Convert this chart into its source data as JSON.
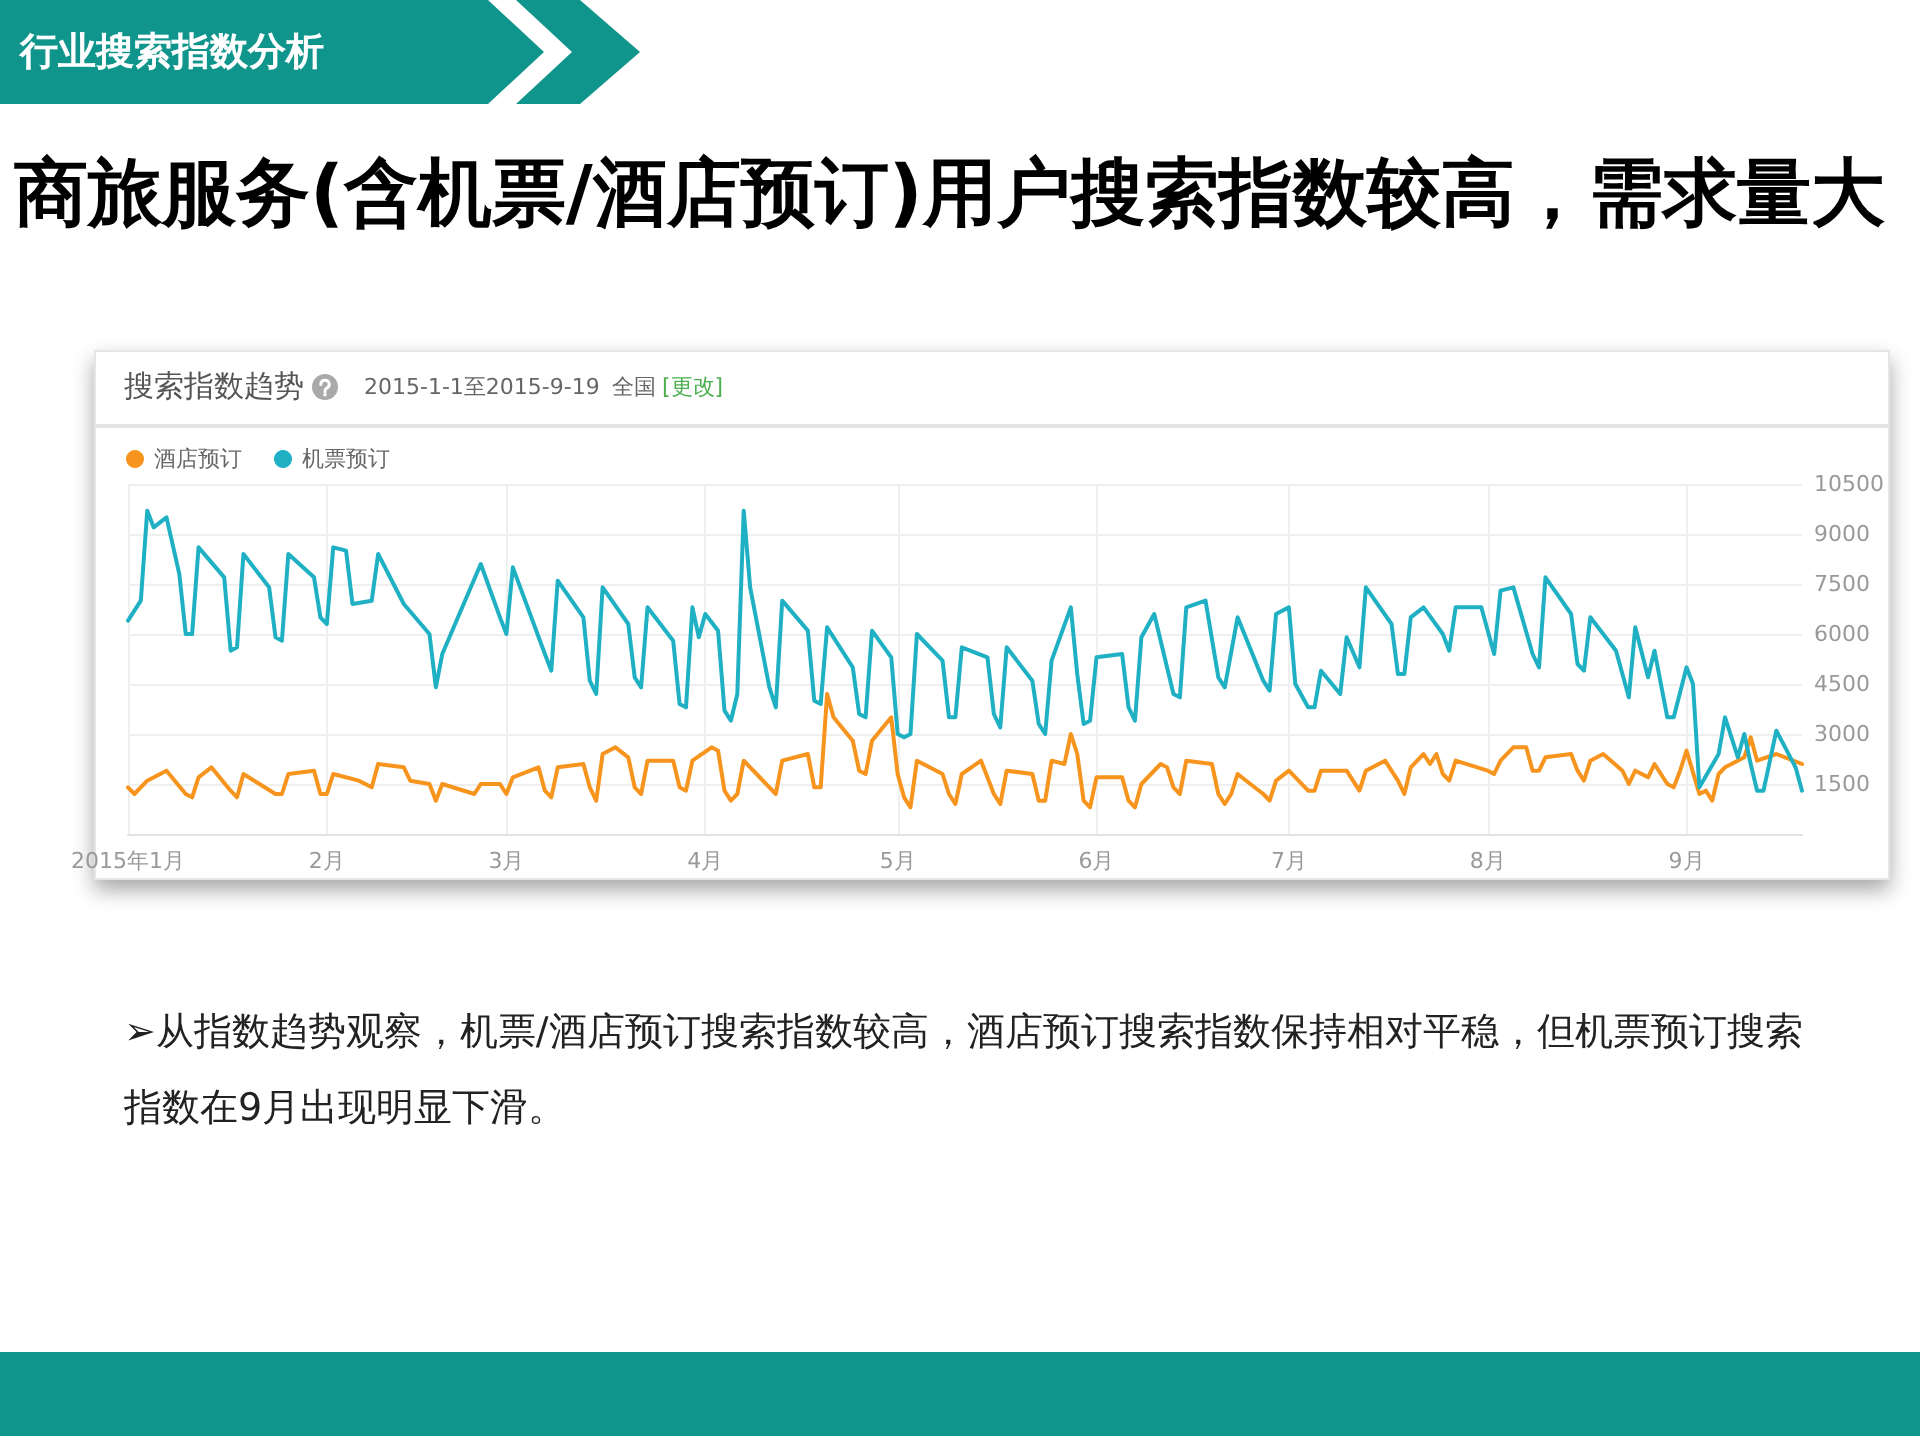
{
  "chart_data": {
    "type": "line",
    "title": "商旅服务(含机票/酒店预订)用户搜索指数较高，需求量大",
    "subtitle": "搜索指数趋势",
    "annotations": [
      "行业搜索指数分析",
      "2015-1-1至2015-9-19",
      "全国",
      "[更改]",
      "➢从指数趋势观察，机票/酒店预订搜索指数较高，酒店预订搜索指数保持相对平稳，但机票预订搜索指数在9月出现明显下滑。"
    ],
    "xlim": [
      "2015-01-01",
      "2015-09-19"
    ],
    "xticks": [
      {
        "value": "2015-01-01",
        "label": "2015年1月"
      },
      {
        "value": "2015-02-01",
        "label": "2月"
      },
      {
        "value": "2015-03-01",
        "label": "3月"
      },
      {
        "value": "2015-04-01",
        "label": "4月"
      },
      {
        "value": "2015-05-01",
        "label": "5月"
      },
      {
        "value": "2015-06-01",
        "label": "6月"
      },
      {
        "value": "2015-07-01",
        "label": "7月"
      },
      {
        "value": "2015-08-01",
        "label": "8月"
      },
      {
        "value": "2015-09-01",
        "label": "9月"
      }
    ],
    "ylim": [
      0,
      10500
    ],
    "yticks": [
      {
        "value": 0,
        "label": null
      },
      1500,
      3000,
      4500,
      6000,
      7500,
      9000,
      10500
    ],
    "grid": true,
    "legend": "top left",
    "marker": "none",
    "series": [
      {
        "name": "酒店预订",
        "color": "#f7941e",
        "x": [
          "2015-01-01",
          "2015-01-02",
          "2015-01-04",
          "2015-01-07",
          "2015-01-10",
          "2015-01-11",
          "2015-01-12",
          "2015-01-14",
          "2015-01-17",
          "2015-01-18",
          "2015-01-19",
          "2015-01-24",
          "2015-01-25",
          "2015-01-26",
          "2015-01-30",
          "2015-01-31",
          "2015-02-01",
          "2015-02-02",
          "2015-02-06",
          "2015-02-08",
          "2015-02-09",
          "2015-02-13",
          "2015-02-14",
          "2015-02-17",
          "2015-02-18",
          "2015-02-19",
          "2015-02-24",
          "2015-02-25",
          "2015-02-28",
          "2015-03-01",
          "2015-03-02",
          "2015-03-06",
          "2015-03-07",
          "2015-03-08",
          "2015-03-09",
          "2015-03-13",
          "2015-03-14",
          "2015-03-15",
          "2015-03-16",
          "2015-03-18",
          "2015-03-20",
          "2015-03-21",
          "2015-03-22",
          "2015-03-23",
          "2015-03-27",
          "2015-03-28",
          "2015-03-29",
          "2015-03-30",
          "2015-04-02",
          "2015-04-03",
          "2015-04-04",
          "2015-04-05",
          "2015-04-06",
          "2015-04-07",
          "2015-04-11",
          "2015-04-12",
          "2015-04-13",
          "2015-04-17",
          "2015-04-18",
          "2015-04-19",
          "2015-04-20",
          "2015-04-21",
          "2015-04-24",
          "2015-04-25",
          "2015-04-26",
          "2015-04-27",
          "2015-04-30",
          "2015-05-01",
          "2015-05-02",
          "2015-05-03",
          "2015-05-04",
          "2015-05-08",
          "2015-05-09",
          "2015-05-10",
          "2015-05-11",
          "2015-05-14",
          "2015-05-16",
          "2015-05-17",
          "2015-05-18",
          "2015-05-22",
          "2015-05-23",
          "2015-05-24",
          "2015-05-25",
          "2015-05-27",
          "2015-05-28",
          "2015-05-29",
          "2015-05-30",
          "2015-05-31",
          "2015-06-01",
          "2015-06-05",
          "2015-06-06",
          "2015-06-07",
          "2015-06-08",
          "2015-06-11",
          "2015-06-12",
          "2015-06-13",
          "2015-06-14",
          "2015-06-15",
          "2015-06-19",
          "2015-06-20",
          "2015-06-21",
          "2015-06-22",
          "2015-06-23",
          "2015-06-27",
          "2015-06-28",
          "2015-06-29",
          "2015-07-01",
          "2015-07-04",
          "2015-07-05",
          "2015-07-06",
          "2015-07-10",
          "2015-07-11",
          "2015-07-12",
          "2015-07-13",
          "2015-07-16",
          "2015-07-18",
          "2015-07-19",
          "2015-07-20",
          "2015-07-22",
          "2015-07-23",
          "2015-07-24",
          "2015-07-25",
          "2015-07-26",
          "2015-07-27",
          "2015-08-01",
          "2015-08-02",
          "2015-08-03",
          "2015-08-05",
          "2015-08-07",
          "2015-08-08",
          "2015-08-09",
          "2015-08-10",
          "2015-08-14",
          "2015-08-15",
          "2015-08-16",
          "2015-08-17",
          "2015-08-19",
          "2015-08-22",
          "2015-08-23",
          "2015-08-24",
          "2015-08-26",
          "2015-08-27",
          "2015-08-29",
          "2015-08-30",
          "2015-08-31",
          "2015-09-01",
          "2015-09-03",
          "2015-09-04",
          "2015-09-05",
          "2015-09-06",
          "2015-09-07",
          "2015-09-10",
          "2015-09-11",
          "2015-09-12",
          "2015-09-15",
          "2015-09-19"
        ],
        "values": [
          1400,
          1200,
          1600,
          1900,
          1200,
          1100,
          1700,
          2000,
          1300,
          1100,
          1800,
          1200,
          1200,
          1800,
          1900,
          1200,
          1200,
          1800,
          1600,
          1400,
          2100,
          2000,
          1600,
          1500,
          1000,
          1500,
          1200,
          1500,
          1500,
          1200,
          1700,
          2000,
          1300,
          1100,
          2000,
          2100,
          1400,
          1000,
          2400,
          2600,
          2300,
          1400,
          1200,
          2200,
          2200,
          1400,
          1300,
          2200,
          2600,
          2500,
          1300,
          1000,
          1200,
          2200,
          1400,
          1200,
          2200,
          2400,
          1400,
          1400,
          4200,
          3500,
          2800,
          1900,
          1800,
          2800,
          3500,
          1800,
          1100,
          800,
          2200,
          1800,
          1200,
          900,
          1800,
          2200,
          1200,
          900,
          1900,
          1800,
          1000,
          1000,
          2200,
          2100,
          3000,
          2400,
          1000,
          800,
          1700,
          1700,
          1000,
          800,
          1500,
          2100,
          2000,
          1400,
          1200,
          2200,
          2100,
          1200,
          900,
          1200,
          1800,
          1200,
          1000,
          1600,
          1900,
          1300,
          1300,
          1900,
          1900,
          1600,
          1300,
          1900,
          2200,
          1600,
          1200,
          2000,
          2400,
          2100,
          2400,
          1800,
          1600,
          2200,
          1900,
          1800,
          2200,
          2600,
          2600,
          1900,
          1900,
          2300,
          2400,
          1900,
          1600,
          2200,
          2400,
          1900,
          1500,
          1900,
          1700,
          2100,
          1500,
          1400,
          1900,
          2500,
          1200,
          1300,
          1000,
          1800,
          2000,
          2300,
          2900,
          2200,
          2400,
          2100
        ]
      },
      {
        "name": "机票预订",
        "color": "#1fb1c3",
        "x": [
          "2015-01-01",
          "2015-01-03",
          "2015-01-04",
          "2015-01-05",
          "2015-01-07",
          "2015-01-09",
          "2015-01-10",
          "2015-01-11",
          "2015-01-12",
          "2015-01-16",
          "2015-01-17",
          "2015-01-18",
          "2015-01-19",
          "2015-01-23",
          "2015-01-24",
          "2015-01-25",
          "2015-01-26",
          "2015-01-30",
          "2015-01-31",
          "2015-02-01",
          "2015-02-02",
          "2015-02-04",
          "2015-02-05",
          "2015-02-08",
          "2015-02-09",
          "2015-02-13",
          "2015-02-17",
          "2015-02-18",
          "2015-02-19",
          "2015-02-25",
          "2015-02-28",
          "2015-03-01",
          "2015-03-02",
          "2015-03-07",
          "2015-03-08",
          "2015-03-09",
          "2015-03-13",
          "2015-03-14",
          "2015-03-15",
          "2015-03-16",
          "2015-03-20",
          "2015-03-21",
          "2015-03-22",
          "2015-03-23",
          "2015-03-27",
          "2015-03-28",
          "2015-03-29",
          "2015-03-30",
          "2015-03-31",
          "2015-04-01",
          "2015-04-03",
          "2015-04-04",
          "2015-04-05",
          "2015-04-06",
          "2015-04-07",
          "2015-04-08",
          "2015-04-11",
          "2015-04-12",
          "2015-04-13",
          "2015-04-17",
          "2015-04-18",
          "2015-04-19",
          "2015-04-20",
          "2015-04-24",
          "2015-04-25",
          "2015-04-26",
          "2015-04-27",
          "2015-04-30",
          "2015-05-01",
          "2015-05-02",
          "2015-05-03",
          "2015-05-04",
          "2015-05-08",
          "2015-05-09",
          "2015-05-10",
          "2015-05-11",
          "2015-05-15",
          "2015-05-16",
          "2015-05-17",
          "2015-05-18",
          "2015-05-22",
          "2015-05-23",
          "2015-05-24",
          "2015-05-25",
          "2015-05-28",
          "2015-05-29",
          "2015-05-30",
          "2015-05-31",
          "2015-06-01",
          "2015-06-05",
          "2015-06-06",
          "2015-06-07",
          "2015-06-08",
          "2015-06-10",
          "2015-06-13",
          "2015-06-14",
          "2015-06-15",
          "2015-06-18",
          "2015-06-20",
          "2015-06-21",
          "2015-06-23",
          "2015-06-27",
          "2015-06-28",
          "2015-06-29",
          "2015-07-01",
          "2015-07-02",
          "2015-07-04",
          "2015-07-05",
          "2015-07-06",
          "2015-07-09",
          "2015-07-10",
          "2015-07-12",
          "2015-07-13",
          "2015-07-17",
          "2015-07-18",
          "2015-07-19",
          "2015-07-20",
          "2015-07-22",
          "2015-07-25",
          "2015-07-26",
          "2015-07-27",
          "2015-07-31",
          "2015-08-02",
          "2015-08-03",
          "2015-08-05",
          "2015-08-08",
          "2015-08-09",
          "2015-08-10",
          "2015-08-14",
          "2015-08-15",
          "2015-08-16",
          "2015-08-17",
          "2015-08-21",
          "2015-08-23",
          "2015-08-24",
          "2015-08-26",
          "2015-08-27",
          "2015-08-29",
          "2015-08-30",
          "2015-09-01",
          "2015-09-02",
          "2015-09-03",
          "2015-09-06",
          "2015-09-07",
          "2015-09-09",
          "2015-09-10",
          "2015-09-11",
          "2015-09-12",
          "2015-09-13",
          "2015-09-15",
          "2015-09-18",
          "2015-09-19"
        ],
        "values": [
          6400,
          7000,
          9700,
          9200,
          9500,
          7800,
          6000,
          6000,
          8600,
          7700,
          5500,
          5600,
          8400,
          7400,
          5900,
          5800,
          8400,
          7700,
          6500,
          6300,
          8600,
          8500,
          6900,
          7000,
          8400,
          6900,
          6000,
          4400,
          5400,
          8100,
          6500,
          6000,
          8000,
          5400,
          4900,
          7600,
          6500,
          4600,
          4200,
          7400,
          6300,
          4700,
          4400,
          6800,
          5800,
          3900,
          3800,
          6800,
          5900,
          6600,
          6100,
          3700,
          3400,
          4200,
          9700,
          7400,
          4400,
          3800,
          7000,
          6100,
          4000,
          3900,
          6200,
          5000,
          3600,
          3500,
          6100,
          5300,
          3000,
          2900,
          3000,
          6000,
          5200,
          3500,
          3500,
          5600,
          5300,
          3600,
          3200,
          5600,
          4600,
          3300,
          3000,
          5200,
          6800,
          4800,
          3300,
          3400,
          5300,
          5400,
          3800,
          3400,
          5900,
          6600,
          4200,
          4100,
          6800,
          7000,
          4700,
          4400,
          6500,
          4600,
          4300,
          6600,
          6800,
          4500,
          3800,
          3800,
          4900,
          4200,
          5900,
          5000,
          7400,
          6300,
          4800,
          4800,
          6500,
          6800,
          6000,
          5500,
          6800,
          6800,
          5400,
          7300,
          7400,
          5400,
          5000,
          7700,
          6600,
          5100,
          4900,
          6500,
          5500,
          4100,
          6200,
          4700,
          5500,
          3500,
          3500,
          5000,
          4500,
          1400,
          2400,
          3500,
          2300,
          3000,
          2100,
          1300,
          1300,
          3100,
          2000,
          1300
        ]
      }
    ]
  }
}
